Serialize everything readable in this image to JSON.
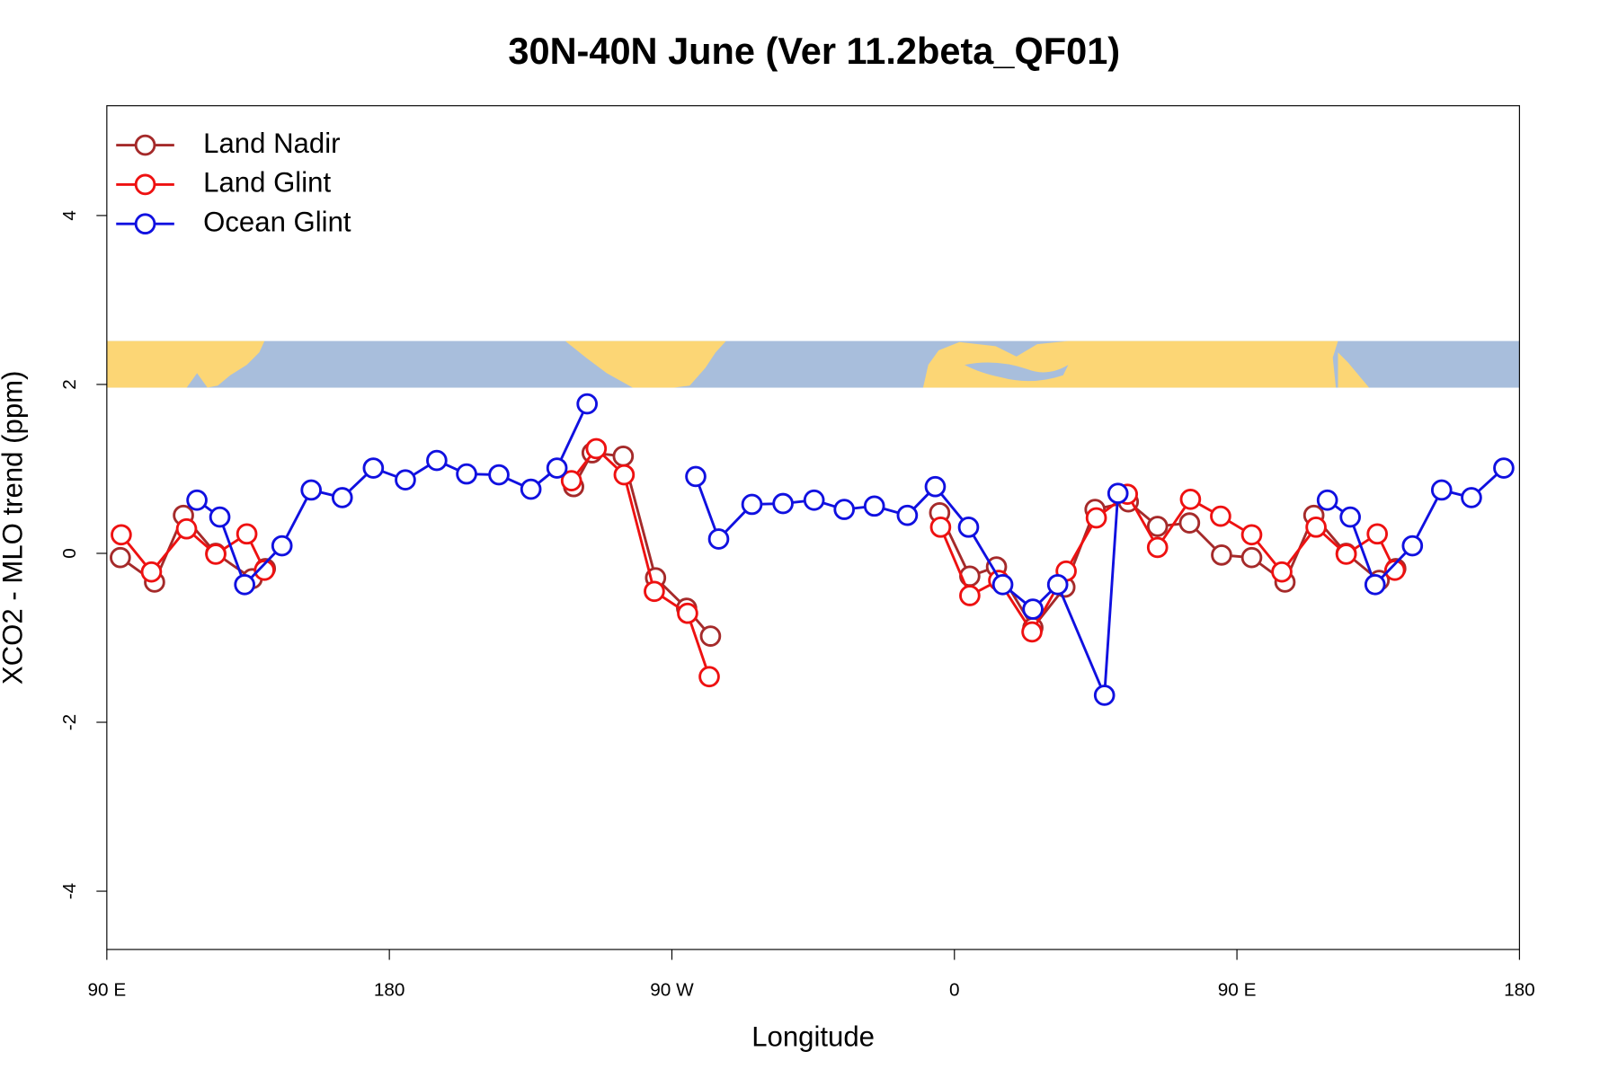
{
  "chart_data": {
    "type": "line",
    "title": "30N-40N June (Ver 11.2beta_QF01)",
    "xlabel": "Longitude",
    "ylabel": "XCO2 - MLO trend (ppm)",
    "xlim": [
      90,
      540
    ],
    "ylim": [
      -4.69,
      5.3
    ],
    "xticks": [
      {
        "value": 90,
        "label": "90 E"
      },
      180,
      {
        "value": 270,
        "label": "90 W"
      },
      {
        "value": 360,
        "label": "0"
      },
      {
        "value": 450,
        "label": "90 E"
      },
      {
        "value": 540,
        "label": "180"
      }
    ],
    "yticks": [
      -4,
      -2,
      0,
      2,
      4
    ],
    "legend": "topleft",
    "series": [
      {
        "name": "Land Nadir",
        "color": "#a52a2a",
        "x": [
          94.3,
          105.2,
          114.4,
          124.7,
          136.3,
          140.5,
          null,
          238.7,
          244.6,
          254.5,
          264.8,
          274.7,
          282.3,
          null,
          355.3,
          364.9,
          373.4,
          385.0,
          395.2,
          404.8,
          415.4,
          424.7,
          434.9,
          445.1,
          454.7,
          465.3,
          474.5,
          484.8,
          495.3,
          500.6
        ],
        "values": [
          -0.05,
          -0.34,
          0.45,
          0.0,
          -0.3,
          -0.18,
          null,
          0.79,
          1.19,
          1.15,
          -0.29,
          -0.65,
          -0.98,
          null,
          0.48,
          -0.27,
          -0.16,
          -0.88,
          -0.4,
          0.52,
          0.61,
          0.32,
          0.36,
          -0.02,
          -0.05,
          -0.34,
          0.45,
          0.0,
          -0.32,
          -0.18
        ]
      },
      {
        "name": "Land Glint",
        "color": "#ee1111",
        "x": [
          94.6,
          104.2,
          115.4,
          124.7,
          134.6,
          140.2,
          null,
          238.0,
          245.9,
          254.8,
          264.4,
          275.0,
          281.9,
          null,
          355.6,
          364.9,
          374.1,
          384.7,
          395.6,
          405.2,
          415.1,
          424.7,
          435.2,
          444.8,
          454.7,
          464.3,
          475.2,
          484.8,
          494.7,
          500.3
        ],
        "values": [
          0.22,
          -0.22,
          0.29,
          -0.01,
          0.23,
          -0.2,
          null,
          0.86,
          1.24,
          0.93,
          -0.45,
          -0.71,
          -1.46,
          null,
          0.31,
          -0.5,
          -0.32,
          -0.93,
          -0.21,
          0.42,
          0.7,
          0.07,
          0.64,
          0.44,
          0.22,
          -0.22,
          0.31,
          -0.01,
          0.23,
          -0.2
        ]
      },
      {
        "name": "Ocean Glint",
        "color": "#1010e0",
        "x": [
          118.7,
          126.0,
          133.9,
          145.8,
          155.1,
          165.0,
          174.9,
          185.1,
          195.1,
          204.6,
          214.9,
          225.1,
          233.4,
          243.0,
          null,
          277.6,
          284.9,
          295.5,
          305.4,
          315.3,
          324.9,
          334.5,
          345.0,
          353.9,
          364.5,
          375.4,
          385.0,
          392.9,
          407.8,
          412.1,
          null,
          478.8,
          486.1,
          494.0,
          505.9,
          515.2,
          524.7,
          535.0
        ],
        "values": [
          0.63,
          0.43,
          -0.37,
          0.09,
          0.75,
          0.66,
          1.01,
          0.87,
          1.1,
          0.94,
          0.93,
          0.76,
          1.01,
          1.77,
          null,
          0.91,
          0.17,
          0.58,
          0.59,
          0.63,
          0.52,
          0.56,
          0.45,
          0.79,
          0.31,
          -0.37,
          -0.66,
          -0.37,
          -1.68,
          0.71,
          null,
          0.63,
          0.43,
          -0.37,
          0.09,
          0.75,
          0.66,
          1.01
        ]
      }
    ]
  }
}
